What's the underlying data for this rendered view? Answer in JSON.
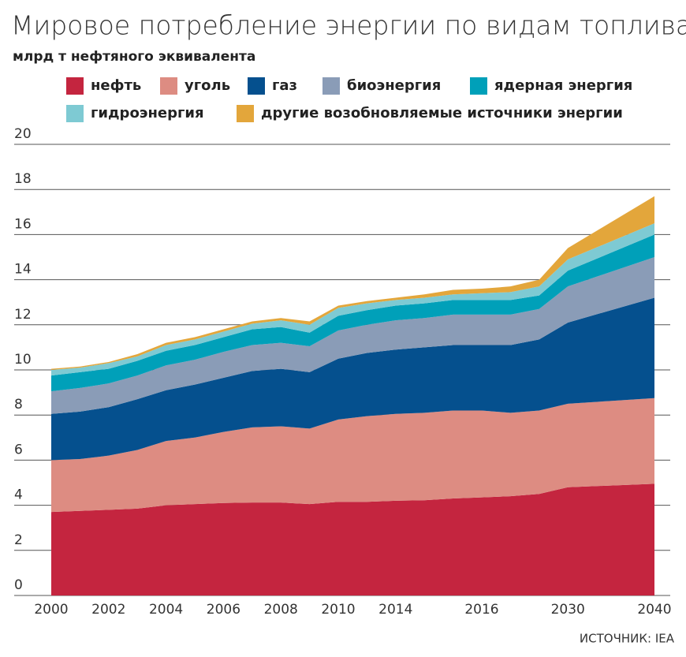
{
  "chart_data": {
    "type": "stacked-area",
    "title": "Мировое потребление энергии по видам топлива",
    "subtitle": "млрд т нефтяного эквивалента",
    "source": "ИСТОЧНИК: IEA",
    "categories": [
      "2000",
      null,
      "2002",
      null,
      "2004",
      null,
      "2006",
      null,
      "2008",
      null,
      "2010",
      null,
      "2014",
      null,
      null,
      "2016",
      null,
      null,
      "2030",
      "2040"
    ],
    "ylim": [
      0,
      20
    ],
    "yticks": [
      0,
      2,
      4,
      6,
      8,
      10,
      12,
      14,
      16,
      18,
      20
    ],
    "grid": true,
    "series": [
      {
        "name": "нефть",
        "color": "#c4253f",
        "values": [
          3.7,
          3.75,
          3.8,
          3.85,
          4.0,
          4.05,
          4.1,
          4.12,
          4.12,
          4.05,
          4.15,
          4.15,
          4.2,
          4.22,
          4.3,
          4.35,
          4.4,
          4.5,
          4.8,
          4.95
        ]
      },
      {
        "name": "уголь",
        "color": "#dd8c82",
        "values": [
          2.3,
          2.3,
          2.4,
          2.6,
          2.85,
          2.95,
          3.15,
          3.33,
          3.38,
          3.35,
          3.65,
          3.8,
          3.85,
          3.88,
          3.9,
          3.85,
          3.7,
          3.7,
          3.7,
          3.8
        ]
      },
      {
        "name": "газ",
        "color": "#05508e",
        "values": [
          2.05,
          2.1,
          2.15,
          2.25,
          2.25,
          2.35,
          2.4,
          2.5,
          2.55,
          2.5,
          2.7,
          2.8,
          2.85,
          2.9,
          2.9,
          2.9,
          3.0,
          3.15,
          3.6,
          4.45
        ]
      },
      {
        "name": "биоэнергия",
        "color": "#8a9cb7",
        "values": [
          1.0,
          1.05,
          1.05,
          1.05,
          1.1,
          1.1,
          1.15,
          1.15,
          1.15,
          1.15,
          1.25,
          1.25,
          1.3,
          1.3,
          1.35,
          1.35,
          1.35,
          1.35,
          1.6,
          1.8
        ]
      },
      {
        "name": "ядерная энергия",
        "color": "#00a0b9",
        "values": [
          0.7,
          0.7,
          0.65,
          0.65,
          0.65,
          0.65,
          0.65,
          0.7,
          0.7,
          0.6,
          0.65,
          0.65,
          0.65,
          0.65,
          0.65,
          0.65,
          0.65,
          0.6,
          0.7,
          1.0
        ]
      },
      {
        "name": "гидроэнергия",
        "color": "#7ecad3",
        "values": [
          0.25,
          0.2,
          0.25,
          0.2,
          0.25,
          0.25,
          0.25,
          0.25,
          0.3,
          0.35,
          0.35,
          0.3,
          0.25,
          0.25,
          0.25,
          0.3,
          0.35,
          0.4,
          0.5,
          0.5
        ]
      },
      {
        "name": "другие возобновляемые источники энергии",
        "color": "#e3a63b",
        "values": [
          0.05,
          0.05,
          0.05,
          0.1,
          0.1,
          0.1,
          0.1,
          0.1,
          0.1,
          0.15,
          0.1,
          0.1,
          0.1,
          0.15,
          0.2,
          0.2,
          0.25,
          0.3,
          0.5,
          1.2
        ]
      }
    ]
  }
}
